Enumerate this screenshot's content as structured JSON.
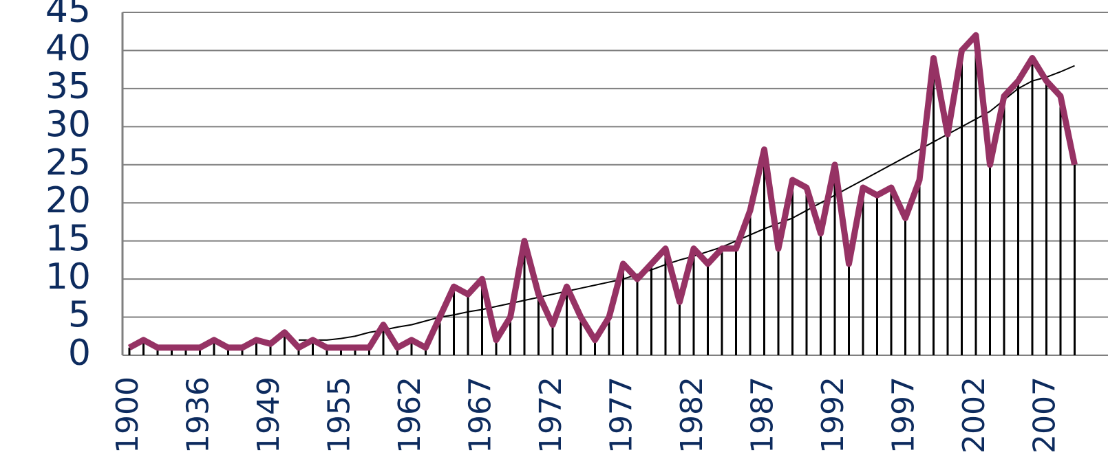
{
  "chart_data": {
    "type": "line",
    "categories": [
      "1900",
      null,
      null,
      null,
      null,
      "1936",
      null,
      null,
      null,
      null,
      "1949",
      null,
      null,
      null,
      null,
      "1955",
      null,
      null,
      null,
      null,
      "1962",
      null,
      null,
      null,
      null,
      "1967",
      null,
      null,
      null,
      null,
      "1972",
      null,
      null,
      null,
      null,
      "1977",
      null,
      null,
      null,
      null,
      "1982",
      null,
      null,
      null,
      null,
      "1987",
      null,
      null,
      null,
      null,
      "1992",
      null,
      null,
      null,
      null,
      "1997",
      null,
      null,
      null,
      null,
      "2002",
      null,
      null,
      null,
      null,
      "2007",
      null,
      null
    ],
    "series": [
      {
        "color": "#963264",
        "values": [
          1,
          2,
          1,
          1,
          1,
          1,
          2,
          1,
          1,
          2,
          1.5,
          3,
          1,
          2,
          1,
          1,
          1,
          1,
          4,
          1,
          2,
          1,
          5,
          9,
          8,
          10,
          2,
          5,
          15,
          8,
          4,
          9,
          5,
          2,
          5,
          12,
          10,
          12,
          14,
          7,
          14,
          12,
          14,
          14,
          19,
          27,
          14,
          23,
          22,
          16,
          25,
          12,
          22,
          21,
          22,
          18,
          23,
          39,
          29,
          40,
          42,
          25,
          34,
          36,
          39,
          36,
          34,
          25
        ]
      },
      {
        "color": "#000000",
        "values": [
          null,
          null,
          null,
          null,
          null,
          null,
          null,
          null,
          null,
          null,
          null,
          null,
          2,
          2,
          2,
          2.2,
          2.5,
          3,
          3.3,
          3.7,
          4,
          4.5,
          5,
          5.3,
          5.7,
          6,
          6.4,
          6.8,
          7.2,
          7.6,
          8,
          8.4,
          8.8,
          9.2,
          9.6,
          10,
          10.6,
          11.2,
          11.9,
          12.5,
          13,
          13.6,
          14.2,
          15,
          15.8,
          16.6,
          17.3,
          18,
          19,
          20,
          21,
          22,
          23,
          24,
          25,
          26,
          27,
          28,
          29,
          30,
          31,
          32,
          33.5,
          35,
          36,
          36.5,
          37.2,
          38
        ]
      }
    ],
    "ylim": [
      0,
      45
    ],
    "yticks": [
      0,
      5,
      10,
      15,
      20,
      25,
      30,
      35,
      40,
      45
    ],
    "grid": true
  }
}
